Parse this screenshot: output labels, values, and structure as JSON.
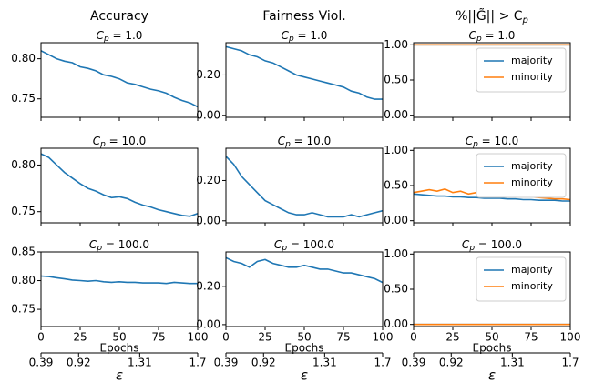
{
  "chart_data": [
    {
      "type": "line",
      "column_title": "Accuracy",
      "title": "C",
      "title_sub": "p",
      "title_rest": " = 1.0",
      "color": "#1f77b4",
      "x": [
        0,
        5,
        10,
        15,
        20,
        25,
        30,
        35,
        40,
        45,
        50,
        55,
        60,
        65,
        70,
        75,
        80,
        85,
        90,
        95,
        100
      ],
      "values": [
        0.81,
        0.805,
        0.8,
        0.797,
        0.795,
        0.79,
        0.788,
        0.785,
        0.78,
        0.778,
        0.775,
        0.77,
        0.768,
        0.765,
        0.762,
        0.76,
        0.757,
        0.752,
        0.748,
        0.745,
        0.74
      ],
      "xlim": [
        0,
        100
      ],
      "xticks": [
        0,
        25,
        50,
        75,
        100
      ],
      "ylim": [
        0.727,
        0.82
      ],
      "yticks": [
        0.75,
        {
          "value": 0.8,
          "label": "0.80"
        }
      ]
    },
    {
      "type": "line",
      "column_title": "Fairness Viol.",
      "title": "C",
      "title_sub": "p",
      "title_rest": " = 1.0",
      "color": "#1f77b4",
      "x": [
        0,
        5,
        10,
        15,
        20,
        25,
        30,
        35,
        40,
        45,
        50,
        55,
        60,
        65,
        70,
        75,
        80,
        85,
        90,
        95,
        100
      ],
      "values": [
        0.34,
        0.33,
        0.32,
        0.3,
        0.29,
        0.27,
        0.26,
        0.24,
        0.22,
        0.2,
        0.19,
        0.18,
        0.17,
        0.16,
        0.15,
        0.14,
        0.12,
        0.11,
        0.09,
        0.08,
        0.08
      ],
      "xlim": [
        0,
        100
      ],
      "xticks": [
        0,
        25,
        50,
        75,
        100
      ],
      "ylim": [
        -0.01,
        0.36
      ],
      "yticks": [
        {
          "value": 0,
          "label": "0.00"
        },
        {
          "value": 0.2,
          "label": "0.20"
        }
      ]
    },
    {
      "type": "line",
      "column_title": "%||G̃|| > C",
      "column_title_sub": "p",
      "title": "C",
      "title_sub": "p",
      "title_rest": " = 1.0",
      "legend": "upper right",
      "x": [
        0,
        5,
        10,
        15,
        20,
        25,
        30,
        35,
        40,
        45,
        50,
        55,
        60,
        65,
        70,
        75,
        80,
        85,
        90,
        95,
        100
      ],
      "series": [
        {
          "name": "majority",
          "color": "#1f77b4",
          "values": [
            1,
            1,
            1,
            1,
            1,
            1,
            1,
            1,
            1,
            1,
            1,
            1,
            1,
            1,
            1,
            1,
            1,
            1,
            1,
            1,
            1
          ]
        },
        {
          "name": "minority",
          "color": "#ff7f0e",
          "values": [
            1,
            1,
            1,
            1,
            1,
            1,
            1,
            1,
            1,
            1,
            1,
            1,
            1,
            1,
            1,
            1,
            1,
            1,
            1,
            1,
            1
          ]
        }
      ],
      "xlim": [
        0,
        100
      ],
      "xticks": [
        0,
        25,
        50,
        75,
        100
      ],
      "ylim": [
        -0.03,
        1.03
      ],
      "yticks": [
        {
          "value": 0,
          "label": "0.00"
        },
        {
          "value": 0.5,
          "label": "0.50"
        },
        {
          "value": 1,
          "label": "1.00"
        }
      ]
    },
    {
      "type": "line",
      "title": "C",
      "title_sub": "p",
      "title_rest": " = 10.0",
      "color": "#1f77b4",
      "x": [
        0,
        5,
        10,
        15,
        20,
        25,
        30,
        35,
        40,
        45,
        50,
        55,
        60,
        65,
        70,
        75,
        80,
        85,
        90,
        95,
        100
      ],
      "values": [
        0.812,
        0.808,
        0.8,
        0.792,
        0.786,
        0.78,
        0.775,
        0.772,
        0.768,
        0.765,
        0.766,
        0.764,
        0.76,
        0.757,
        0.755,
        0.752,
        0.75,
        0.748,
        0.746,
        0.745,
        0.748
      ],
      "xlim": [
        0,
        100
      ],
      "xticks": [
        0,
        25,
        50,
        75,
        100
      ],
      "ylim": [
        0.738,
        0.818
      ],
      "yticks": [
        0.75,
        {
          "value": 0.8,
          "label": "0.80"
        }
      ]
    },
    {
      "type": "line",
      "title": "C",
      "title_sub": "p",
      "title_rest": " = 10.0",
      "color": "#1f77b4",
      "x": [
        0,
        5,
        10,
        15,
        20,
        25,
        30,
        35,
        40,
        45,
        50,
        55,
        60,
        65,
        70,
        75,
        80,
        85,
        90,
        95,
        100
      ],
      "values": [
        0.32,
        0.28,
        0.22,
        0.18,
        0.14,
        0.1,
        0.08,
        0.06,
        0.04,
        0.03,
        0.03,
        0.04,
        0.03,
        0.02,
        0.02,
        0.02,
        0.03,
        0.02,
        0.03,
        0.04,
        0.05
      ],
      "xlim": [
        0,
        100
      ],
      "xticks": [
        0,
        25,
        50,
        75,
        100
      ],
      "ylim": [
        -0.01,
        0.36
      ],
      "yticks": [
        {
          "value": 0,
          "label": "0.00"
        },
        {
          "value": 0.2,
          "label": "0.20"
        }
      ]
    },
    {
      "type": "line",
      "title": "C",
      "title_sub": "p",
      "title_rest": " = 10.0",
      "legend": "upper right",
      "x": [
        0,
        5,
        10,
        15,
        20,
        25,
        30,
        35,
        40,
        45,
        50,
        55,
        60,
        65,
        70,
        75,
        80,
        85,
        90,
        95,
        100
      ],
      "series": [
        {
          "name": "majority",
          "color": "#1f77b4",
          "values": [
            0.38,
            0.37,
            0.36,
            0.35,
            0.35,
            0.34,
            0.34,
            0.33,
            0.33,
            0.32,
            0.32,
            0.32,
            0.31,
            0.31,
            0.3,
            0.3,
            0.29,
            0.29,
            0.29,
            0.28,
            0.28
          ]
        },
        {
          "name": "minority",
          "color": "#ff7f0e",
          "values": [
            0.4,
            0.42,
            0.44,
            0.42,
            0.45,
            0.4,
            0.42,
            0.38,
            0.4,
            0.38,
            0.37,
            0.38,
            0.36,
            0.35,
            0.37,
            0.34,
            0.33,
            0.32,
            0.31,
            0.31,
            0.3
          ]
        }
      ],
      "xlim": [
        0,
        100
      ],
      "xticks": [
        0,
        25,
        50,
        75,
        100
      ],
      "ylim": [
        -0.03,
        1.03
      ],
      "yticks": [
        {
          "value": 0,
          "label": "0.00"
        },
        {
          "value": 0.5,
          "label": "0.50"
        },
        {
          "value": 1,
          "label": "1.00"
        }
      ]
    },
    {
      "type": "line",
      "title": "C",
      "title_sub": "p",
      "title_rest": " = 100.0",
      "color": "#1f77b4",
      "x": [
        0,
        5,
        10,
        15,
        20,
        25,
        30,
        35,
        40,
        45,
        50,
        55,
        60,
        65,
        70,
        75,
        80,
        85,
        90,
        95,
        100
      ],
      "values": [
        0.808,
        0.807,
        0.805,
        0.803,
        0.801,
        0.8,
        0.799,
        0.8,
        0.798,
        0.797,
        0.798,
        0.797,
        0.797,
        0.796,
        0.796,
        0.796,
        0.795,
        0.797,
        0.796,
        0.795,
        0.795
      ],
      "xlim": [
        0,
        100
      ],
      "xticks": [
        0,
        25,
        50,
        75,
        100
      ],
      "ylim": [
        0.72,
        0.85
      ],
      "yticks": [
        0.75,
        {
          "value": 0.8,
          "label": "0.80"
        },
        0.85
      ],
      "xlabel": "Epochs",
      "x2ticks": [
        {
          "value": 0,
          "label": "0.39"
        },
        {
          "value": 24,
          "label": "0.92"
        },
        {
          "value": 63,
          "label": "1.31"
        },
        {
          "value": 100,
          "label": "1.7"
        }
      ],
      "x2label": "ε"
    },
    {
      "type": "line",
      "title": "C",
      "title_sub": "p",
      "title_rest": " = 100.0",
      "color": "#1f77b4",
      "x": [
        0,
        5,
        10,
        15,
        20,
        25,
        30,
        35,
        40,
        45,
        50,
        55,
        60,
        65,
        70,
        75,
        80,
        85,
        90,
        95,
        100
      ],
      "values": [
        0.35,
        0.33,
        0.32,
        0.3,
        0.33,
        0.34,
        0.32,
        0.31,
        0.3,
        0.3,
        0.31,
        0.3,
        0.29,
        0.29,
        0.28,
        0.27,
        0.27,
        0.26,
        0.25,
        0.24,
        0.22
      ],
      "xlim": [
        0,
        100
      ],
      "xticks": [
        0,
        25,
        50,
        75,
        100
      ],
      "ylim": [
        -0.01,
        0.38
      ],
      "yticks": [
        {
          "value": 0,
          "label": "0.00"
        },
        {
          "value": 0.2,
          "label": "0.20"
        }
      ],
      "xlabel": "Epochs",
      "x2ticks": [
        {
          "value": 0,
          "label": "0.39"
        },
        {
          "value": 24,
          "label": "0.92"
        },
        {
          "value": 63,
          "label": "1.31"
        },
        {
          "value": 100,
          "label": "1.7"
        }
      ],
      "x2label": "ε"
    },
    {
      "type": "line",
      "title": "C",
      "title_sub": "p",
      "title_rest": " = 100.0",
      "legend": "upper right",
      "x": [
        0,
        5,
        10,
        15,
        20,
        25,
        30,
        35,
        40,
        45,
        50,
        55,
        60,
        65,
        70,
        75,
        80,
        85,
        90,
        95,
        100
      ],
      "series": [
        {
          "name": "majority",
          "color": "#1f77b4",
          "values": [
            0,
            0,
            0,
            0,
            0,
            0,
            0,
            0,
            0,
            0,
            0,
            0,
            0,
            0,
            0,
            0,
            0,
            0,
            0,
            0,
            0
          ]
        },
        {
          "name": "minority",
          "color": "#ff7f0e",
          "values": [
            0,
            0,
            0,
            0,
            0,
            0,
            0,
            0,
            0,
            0,
            0,
            0,
            0,
            0,
            0,
            0,
            0,
            0,
            0,
            0,
            0
          ]
        }
      ],
      "xlim": [
        0,
        100
      ],
      "xticks": [
        0,
        25,
        50,
        75,
        100
      ],
      "ylim": [
        -0.03,
        1.03
      ],
      "yticks": [
        {
          "value": 0,
          "label": "0.00"
        },
        {
          "value": 0.5,
          "label": "0.50"
        },
        {
          "value": 1,
          "label": "1.00"
        }
      ],
      "xlabel": "Epochs",
      "x2ticks": [
        {
          "value": 0,
          "label": "0.39"
        },
        {
          "value": 24,
          "label": "0.92"
        },
        {
          "value": 63,
          "label": "1.31"
        },
        {
          "value": 100,
          "label": "1.7"
        }
      ],
      "x2label": "ε"
    }
  ]
}
